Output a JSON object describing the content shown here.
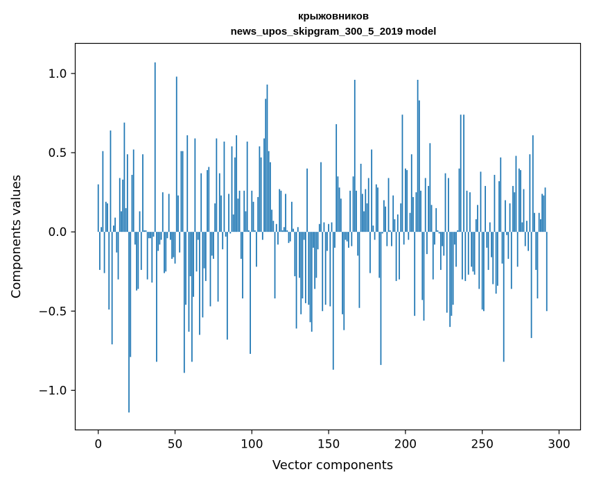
{
  "chart_data": {
    "type": "bar",
    "title": "крыжовников",
    "subtitle": "news_upos_skipgram_300_5_2019 model",
    "xlabel": "Vector components",
    "ylabel": "Components values",
    "xlim": [
      -15,
      314
    ],
    "ylim": [
      -1.25,
      1.19
    ],
    "xticks": [
      0,
      50,
      100,
      150,
      200,
      250,
      300
    ],
    "yticks": [
      1.0,
      0.5,
      0.0,
      -0.5,
      -1.0
    ],
    "ytick_labels": [
      "1.0",
      "0.5",
      "0.0",
      "−0.5",
      "−1.0"
    ],
    "bar_color": "#1f77b4",
    "values": [
      0.3,
      -0.24,
      0.03,
      0.51,
      -0.26,
      0.19,
      0.18,
      -0.49,
      0.64,
      -0.71,
      0.04,
      0.09,
      -0.13,
      -0.3,
      0.34,
      0.13,
      0.33,
      0.69,
      0.15,
      0.49,
      -1.14,
      -0.79,
      0.36,
      0.52,
      -0.08,
      -0.37,
      -0.36,
      0.13,
      -0.24,
      0.49,
      0.01,
      0.01,
      -0.3,
      -0.04,
      -0.04,
      -0.32,
      -0.03,
      1.07,
      -0.82,
      -0.12,
      -0.08,
      -0.05,
      0.25,
      -0.26,
      -0.25,
      -0.04,
      0.24,
      -0.05,
      -0.17,
      -0.16,
      -0.2,
      0.98,
      0.23,
      -0.13,
      0.51,
      0.51,
      -0.89,
      -0.46,
      0.61,
      -0.63,
      -0.28,
      -0.82,
      -0.41,
      0.59,
      -0.25,
      -0.05,
      -0.65,
      0.37,
      -0.54,
      -0.23,
      -0.31,
      0.39,
      0.41,
      -0.47,
      -0.15,
      -0.17,
      0.18,
      0.59,
      -0.44,
      0.37,
      0.23,
      -0.11,
      0.57,
      -0.03,
      -0.68,
      0.24,
      -0.01,
      0.54,
      0.11,
      0.47,
      0.61,
      0.21,
      0.26,
      -0.17,
      -0.42,
      0.26,
      0.13,
      0.57,
      0.01,
      -0.77,
      0.26,
      0.19,
      0.01,
      -0.22,
      0.22,
      0.54,
      0.47,
      -0.05,
      0.59,
      0.84,
      0.93,
      0.51,
      0.44,
      0.14,
      0.07,
      -0.42,
      0.05,
      -0.08,
      0.27,
      0.26,
      0.01,
      0.03,
      0.24,
      0.01,
      -0.07,
      -0.06,
      0.19,
      0.02,
      -0.28,
      -0.61,
      0.03,
      -0.29,
      -0.52,
      -0.42,
      -0.05,
      -0.45,
      0.4,
      -0.46,
      -0.57,
      -0.63,
      -0.1,
      -0.36,
      -0.29,
      -0.11,
      0.05,
      0.44,
      -0.5,
      0.06,
      -0.46,
      -0.12,
      0.05,
      -0.47,
      0.06,
      -0.87,
      -0.1,
      0.68,
      0.35,
      0.28,
      0.21,
      -0.52,
      -0.62,
      -0.05,
      -0.06,
      -0.1,
      0.26,
      -0.09,
      0.35,
      0.96,
      0.26,
      -0.15,
      -0.48,
      0.43,
      0.24,
      0.13,
      0.27,
      0.18,
      0.34,
      -0.26,
      0.52,
      0.04,
      -0.05,
      0.3,
      0.28,
      -0.29,
      -0.84,
      -0.01,
      0.2,
      0.16,
      -0.09,
      0.34,
      0.01,
      -0.09,
      0.23,
      0.08,
      -0.31,
      0.11,
      -0.3,
      0.18,
      0.74,
      -0.08,
      0.4,
      0.39,
      -0.05,
      0.12,
      0.49,
      0.22,
      -0.53,
      0.25,
      0.96,
      0.83,
      0.26,
      -0.43,
      -0.56,
      0.34,
      -0.14,
      0.29,
      0.56,
      0.17,
      -0.3,
      -0.08,
      0.15,
      0.01,
      -0.01,
      -0.24,
      -0.09,
      -0.15,
      0.37,
      -0.51,
      0.34,
      -0.6,
      -0.53,
      -0.46,
      -0.08,
      -0.22,
      0.01,
      0.4,
      0.74,
      -0.3,
      0.74,
      -0.31,
      0.26,
      -0.27,
      0.25,
      -0.22,
      -0.25,
      -0.27,
      0.08,
      0.17,
      -0.36,
      0.38,
      -0.49,
      -0.5,
      0.29,
      -0.1,
      -0.24,
      0.06,
      -0.16,
      -0.33,
      0.36,
      -0.39,
      -0.34,
      0.32,
      0.47,
      -0.2,
      -0.82,
      0.2,
      -0.02,
      -0.17,
      0.18,
      -0.36,
      0.29,
      0.25,
      0.48,
      -0.22,
      0.4,
      0.39,
      0.06,
      0.27,
      -0.09,
      0.07,
      -0.12,
      0.49,
      -0.67,
      0.61,
      0.12,
      -0.24,
      -0.42,
      0.12,
      0.08,
      0.24,
      0.23,
      0.28,
      -0.5
    ]
  }
}
